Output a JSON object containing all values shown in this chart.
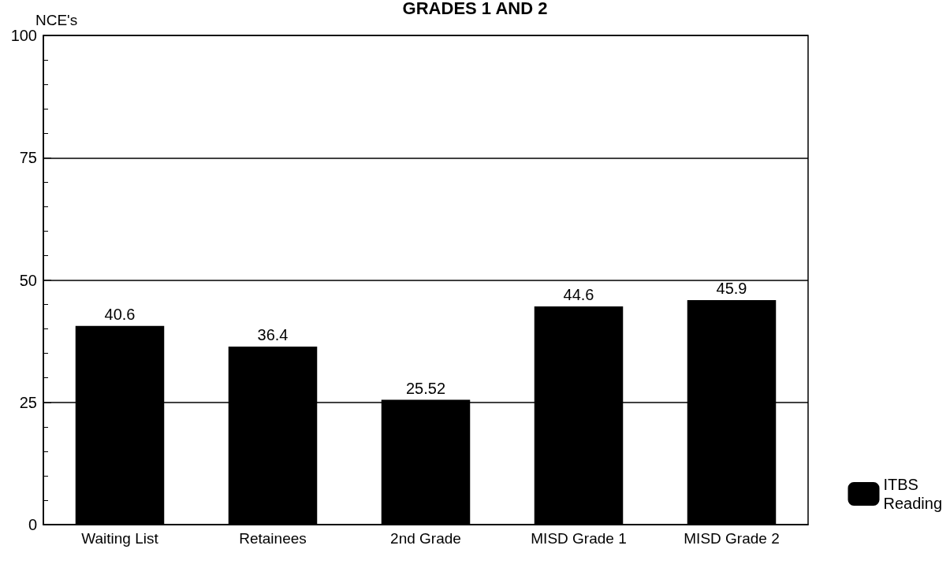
{
  "chart_data": {
    "type": "bar",
    "title": "GRADES 1 AND 2",
    "ylabel": "NCE's",
    "categories": [
      "Waiting List",
      "Retainees",
      "2nd Grade",
      "MISD Grade 1",
      "MISD Grade 2"
    ],
    "series": [
      {
        "name": "ITBS Reading",
        "color": "#000000",
        "values": [
          40.6,
          36.4,
          25.52,
          44.6,
          45.9
        ]
      }
    ],
    "ylim": [
      0,
      100
    ],
    "yticks": [
      0,
      25,
      50,
      75,
      100
    ],
    "grid": "y",
    "data_labels": true,
    "legend": "bottom right"
  }
}
